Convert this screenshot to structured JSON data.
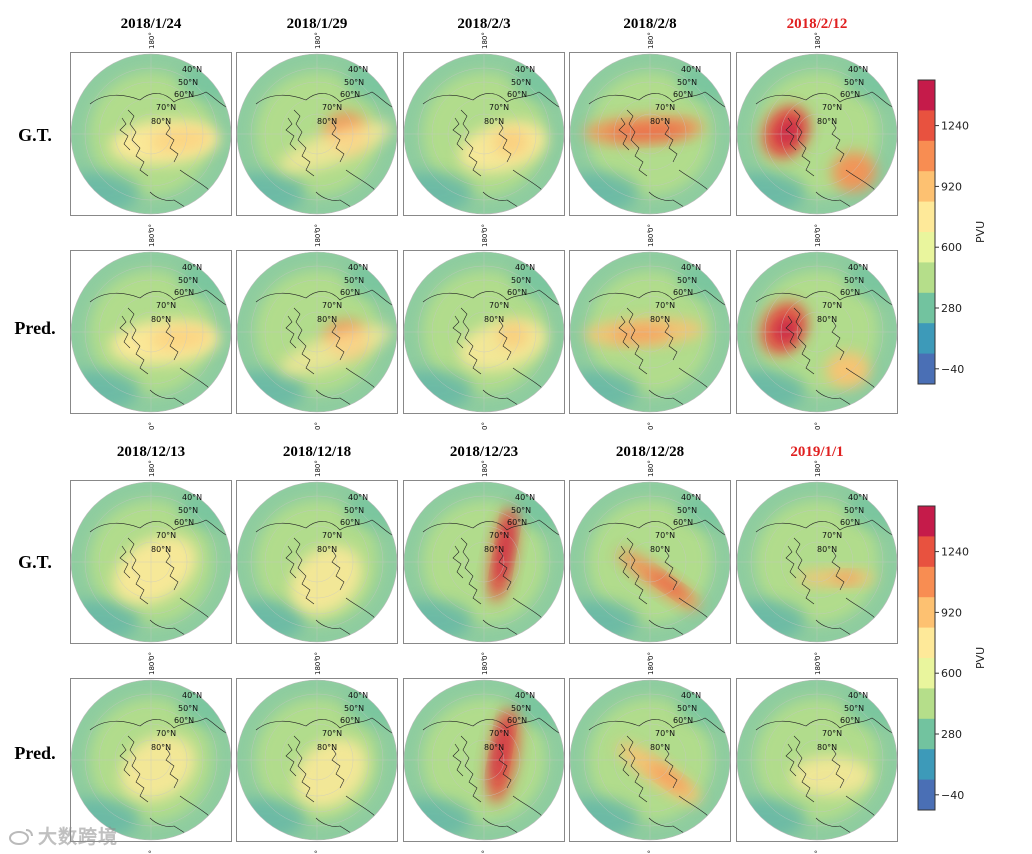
{
  "groups": [
    {
      "dates": [
        {
          "label": "2018/1/24",
          "color": "#000000"
        },
        {
          "label": "2018/1/29",
          "color": "#000000"
        },
        {
          "label": "2018/2/3",
          "color": "#000000"
        },
        {
          "label": "2018/2/8",
          "color": "#000000"
        },
        {
          "label": "2018/2/12",
          "color": "#e02020"
        }
      ],
      "rows": [
        {
          "label": "G.T."
        },
        {
          "label": "Pred."
        }
      ]
    },
    {
      "dates": [
        {
          "label": "2018/12/13",
          "color": "#000000"
        },
        {
          "label": "2018/12/18",
          "color": "#000000"
        },
        {
          "label": "2018/12/23",
          "color": "#000000"
        },
        {
          "label": "2018/12/28",
          "color": "#000000"
        },
        {
          "label": "2019/1/1",
          "color": "#e02020"
        }
      ],
      "rows": [
        {
          "label": "G.T."
        },
        {
          "label": "Pred."
        }
      ]
    }
  ],
  "map_labels": {
    "lon_top": "180°",
    "lon_bottom": "0°",
    "latitudes": [
      "40°N",
      "50°N",
      "60°N",
      "70°N",
      "80°N"
    ]
  },
  "colorbar": {
    "unit": "PVU",
    "ticks": [
      "1240",
      "920",
      "600",
      "280",
      "−40"
    ],
    "colors": [
      "#c51b4a",
      "#e8523f",
      "#f88d52",
      "#fdc171",
      "#fee999",
      "#e9f59d",
      "#b5de8a",
      "#72c39f",
      "#3d9ab9",
      "#4a6fb5"
    ]
  },
  "watermark": "大数跨境"
}
